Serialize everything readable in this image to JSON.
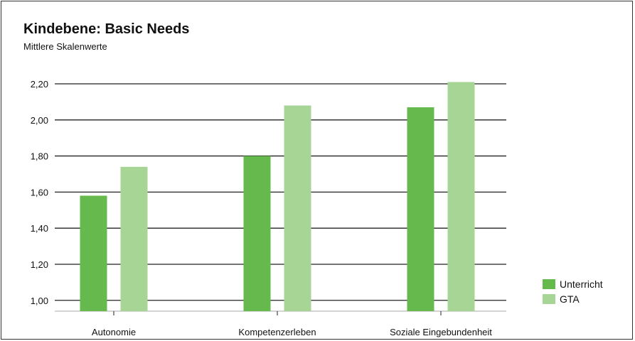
{
  "colors": {
    "unterricht": "#66b94d",
    "gta": "#a6d595",
    "grid": "#222222",
    "axis": "#aaaaaa"
  },
  "chart_data": {
    "type": "bar",
    "title": "Kindebene: Basic Needs",
    "subtitle": "Mittlere Skalenwerte",
    "xlabel": "",
    "ylabel": "",
    "categories": [
      "Autonomie",
      "Kompetenzerleben",
      "Soziale Eingebundenheit"
    ],
    "series": [
      {
        "name": "Unterricht",
        "values": [
          1.58,
          1.8,
          2.07
        ]
      },
      {
        "name": "GTA",
        "values": [
          1.74,
          2.08,
          2.21
        ]
      }
    ],
    "ylim": [
      0.94,
      2.2
    ],
    "yticks": [
      "1,00",
      "1,20",
      "1,40",
      "1,60",
      "1,80",
      "2,00",
      "2,20"
    ],
    "ytick_values": [
      1.0,
      1.2,
      1.4,
      1.6,
      1.8,
      2.0,
      2.2
    ],
    "grid": true,
    "legend_position": "bottom-right"
  }
}
